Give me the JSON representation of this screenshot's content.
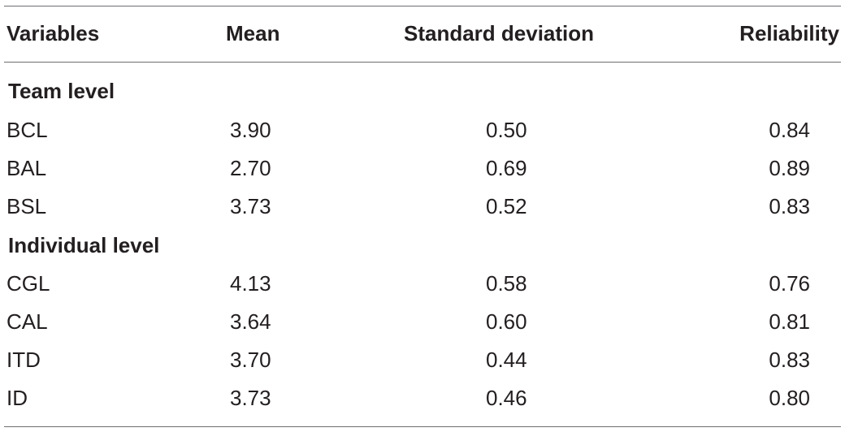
{
  "table": {
    "headers": {
      "variables": "Variables",
      "mean": "Mean",
      "sd": "Standard deviation",
      "reliability": "Reliability"
    },
    "sections": [
      {
        "title": "Team level",
        "rows": [
          {
            "variable": "BCL",
            "mean": "3.90",
            "sd": "0.50",
            "reliability": "0.84"
          },
          {
            "variable": "BAL",
            "mean": "2.70",
            "sd": "0.69",
            "reliability": "0.89"
          },
          {
            "variable": "BSL",
            "mean": "3.73",
            "sd": "0.52",
            "reliability": "0.83"
          }
        ]
      },
      {
        "title": "Individual level",
        "rows": [
          {
            "variable": "CGL",
            "mean": "4.13",
            "sd": "0.58",
            "reliability": "0.76"
          },
          {
            "variable": "CAL",
            "mean": "3.64",
            "sd": "0.60",
            "reliability": "0.81"
          },
          {
            "variable": "ITD",
            "mean": "3.70",
            "sd": "0.44",
            "reliability": "0.83"
          },
          {
            "variable": "ID",
            "mean": "3.73",
            "sd": "0.46",
            "reliability": "0.80"
          }
        ]
      }
    ]
  }
}
